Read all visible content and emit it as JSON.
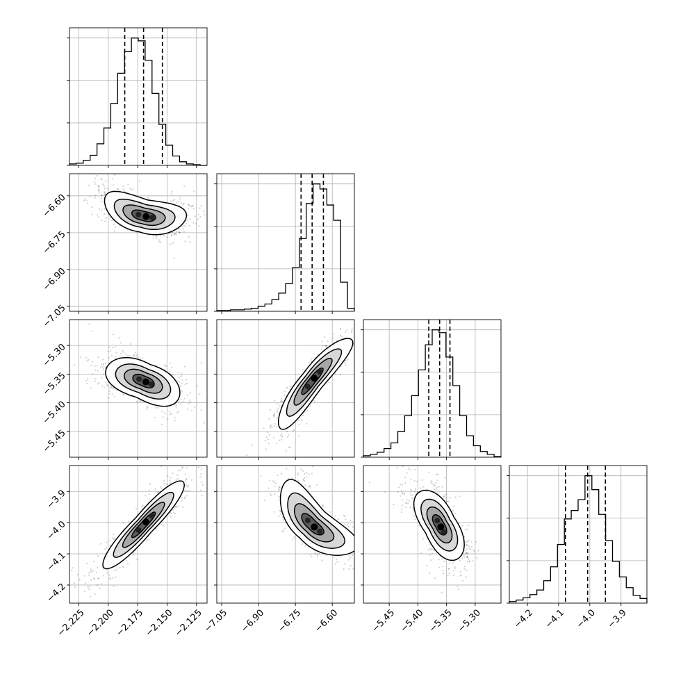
{
  "chart_data": {
    "type": "corner",
    "grid": true,
    "quantiles": [
      0.16,
      0.5,
      0.84
    ],
    "parameters": [
      {
        "range": [
          -2.233,
          -2.116
        ],
        "ticks": [
          -2.225,
          -2.2,
          -2.175,
          -2.15,
          -2.125
        ],
        "tick_labels": [
          "−2.225",
          "−2.200",
          "−2.175",
          "−2.150",
          "−2.125"
        ],
        "quantile_values": [
          -2.186,
          -2.17,
          -2.154
        ]
      },
      {
        "range": [
          -7.07,
          -6.51
        ],
        "ticks": [
          -7.05,
          -6.9,
          -6.75,
          -6.6
        ],
        "tick_labels": [
          "−7.05",
          "−6.90",
          "−6.75",
          "−6.60"
        ],
        "quantile_values": [
          -6.727,
          -6.682,
          -6.636
        ]
      },
      {
        "range": [
          -5.495,
          -5.255
        ],
        "ticks": [
          -5.45,
          -5.4,
          -5.35,
          -5.3
        ],
        "tick_labels": [
          "−5.45",
          "−5.40",
          "−5.35",
          "−5.30"
        ],
        "quantile_values": [
          -5.381,
          -5.362,
          -5.344
        ]
      },
      {
        "range": [
          -4.258,
          -3.817
        ],
        "ticks": [
          -4.2,
          -4.1,
          -4.0,
          -3.9
        ],
        "tick_labels": [
          "−4.2",
          "−4.1",
          "−4.0",
          "−3.9"
        ],
        "quantile_values": [
          -4.078,
          -4.007,
          -3.95
        ]
      }
    ],
    "histograms": [
      [
        2,
        3,
        7,
        14,
        30,
        52,
        86,
        128,
        158,
        177,
        173,
        146,
        100,
        57,
        28,
        13,
        5,
        2,
        1,
        0
      ],
      [
        1,
        1,
        2,
        2,
        3,
        4,
        7,
        10,
        16,
        25,
        38,
        60,
        100,
        148,
        175,
        168,
        146,
        125,
        40,
        4
      ],
      [
        2,
        4,
        7,
        12,
        20,
        36,
        58,
        86,
        122,
        157,
        178,
        174,
        140,
        100,
        58,
        30,
        16,
        8,
        4,
        1
      ],
      [
        2,
        4,
        7,
        11,
        17,
        29,
        47,
        76,
        109,
        120,
        134,
        165,
        147,
        115,
        81,
        54,
        34,
        20,
        10,
        6
      ]
    ],
    "pairs": [
      {
        "row": 1,
        "col": 0,
        "center": [
          -2.17,
          -6.682
        ],
        "direction": [
          1.0,
          -1.15
        ],
        "half_length": 0.036,
        "half_width": 0.004,
        "curvature": -0.35
      },
      {
        "row": 2,
        "col": 0,
        "center": [
          -2.17,
          -5.362
        ],
        "direction": [
          1.0,
          -0.85
        ],
        "half_length": 0.032,
        "half_width": 0.0045,
        "curvature": 0.1
      },
      {
        "row": 2,
        "col": 1,
        "center": [
          -6.682,
          -5.362
        ],
        "direction": [
          1.0,
          0.54
        ],
        "half_length": 0.15,
        "half_width": 0.01,
        "curvature": 0.15
      },
      {
        "row": 3,
        "col": 0,
        "center": [
          -2.17,
          -4.007
        ],
        "direction": [
          1.0,
          4.1
        ],
        "half_length": 0.035,
        "half_width": 0.0017,
        "curvature": 0
      },
      {
        "row": 3,
        "col": 1,
        "center": [
          -6.682,
          -4.007
        ],
        "direction": [
          1.0,
          -0.75
        ],
        "half_length": 0.15,
        "half_width": 0.022,
        "curvature": -0.45
      },
      {
        "row": 3,
        "col": 2,
        "center": [
          -5.362,
          -4.007
        ],
        "direction": [
          1.0,
          -3.3
        ],
        "half_length": 0.034,
        "half_width": 0.008,
        "curvature": 0.05
      }
    ]
  }
}
